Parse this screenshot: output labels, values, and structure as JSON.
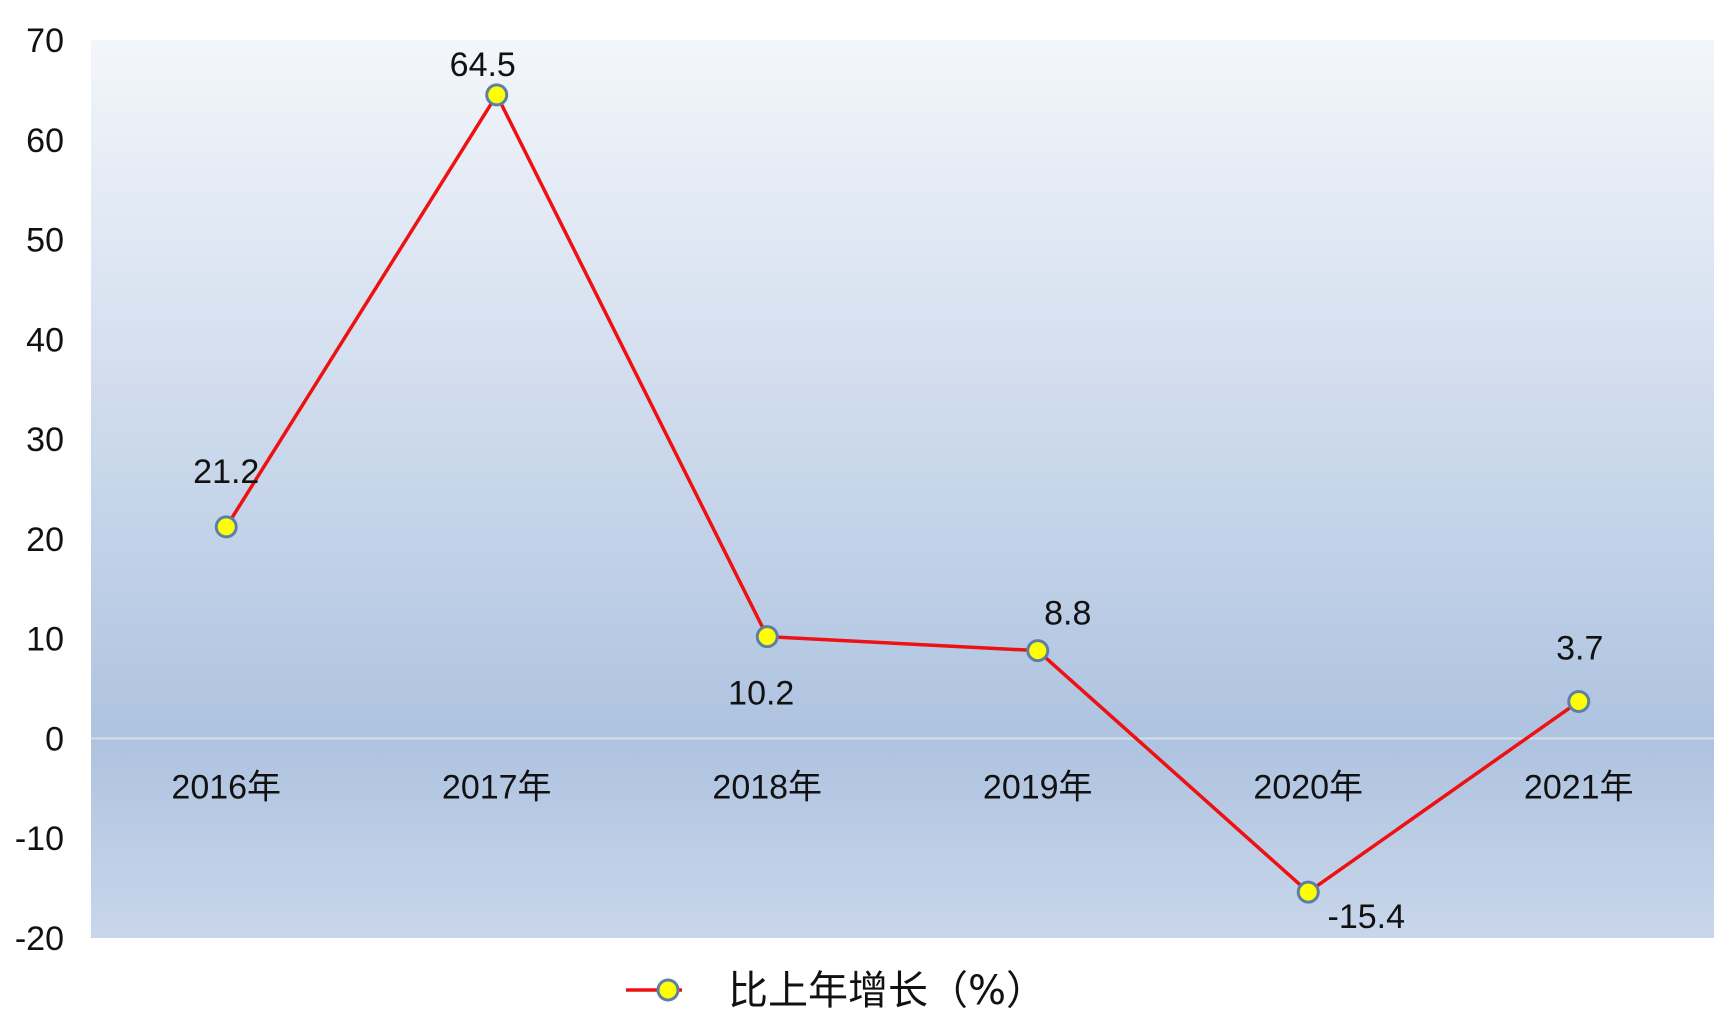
{
  "chart_data": {
    "type": "line",
    "categories": [
      "2016年",
      "2017年",
      "2018年",
      "2019年",
      "2020年",
      "2021年"
    ],
    "series": [
      {
        "name": "比上年增长（%）",
        "values": [
          21.2,
          64.5,
          10.2,
          8.8,
          -15.4,
          3.7
        ]
      }
    ],
    "data_labels": [
      "21.2",
      "64.5",
      "10.2",
      "8.8",
      "-15.4",
      "3.7"
    ],
    "ylim": [
      -20,
      70
    ],
    "yticks": [
      70,
      60,
      50,
      40,
      30,
      20,
      10,
      0,
      -10,
      -20
    ],
    "grid": false,
    "legend": "bottom",
    "colors": {
      "line": "#ee1111",
      "marker_fill": "#ffff00",
      "marker_stroke": "#5b7fa8",
      "plot_top": "#f3f6fb",
      "plot_mid": "#aec3e0",
      "plot_bottom": "#c9d6ea",
      "zero_line": "#d8dee8"
    }
  }
}
